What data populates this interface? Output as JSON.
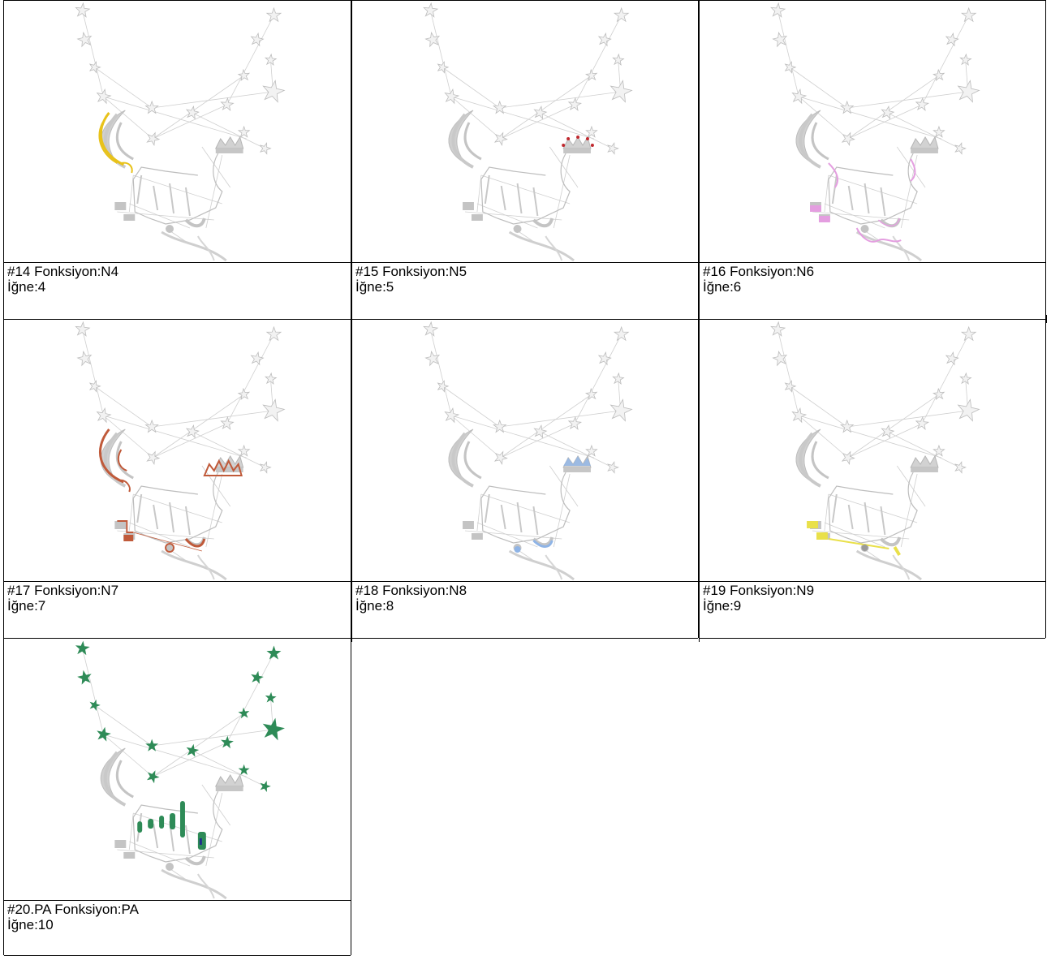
{
  "palette": {
    "grey": "#c8c8c8",
    "line": "#cfcfcf",
    "yellow": "#e8c21a",
    "red": "#c0282e",
    "pink": "#e49ee0",
    "rust": "#c05a3a",
    "blue": "#8fb4e6",
    "lemon": "#e9e04a",
    "green": "#2e8b57"
  },
  "cells": [
    {
      "function": "#14 Fonksiyon:N4",
      "needle": "İğne:4",
      "highlight": "hair",
      "color": "#e8c21a"
    },
    {
      "function": "#15 Fonksiyon:N5",
      "needle": "İğne:5",
      "highlight": "crown-dots",
      "color": "#c0282e"
    },
    {
      "function": "#16 Fonksiyon:N6",
      "needle": "İğne:6",
      "highlight": "pink-outline",
      "color": "#e49ee0"
    },
    {
      "function": "#17 Fonksiyon:N7",
      "needle": "İğne:7",
      "highlight": "rust-outline",
      "color": "#c05a3a"
    },
    {
      "function": "#18 Fonksiyon:N8",
      "needle": "İğne:8",
      "highlight": "blue-bits",
      "color": "#8fb4e6"
    },
    {
      "function": "#19 Fonksiyon:N9",
      "needle": "İğne:9",
      "highlight": "yellow-shoes",
      "color": "#e9e04a"
    },
    {
      "function": "#20.PA Fonksiyon:PA",
      "needle": "İğne:10",
      "highlight": "stars",
      "color": "#2e8b57"
    }
  ]
}
